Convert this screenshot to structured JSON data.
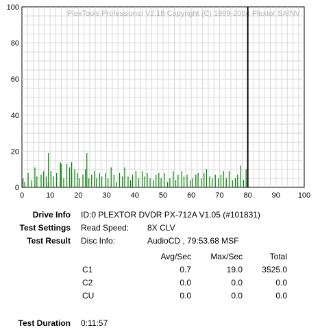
{
  "chart_data": {
    "type": "bar",
    "watermark": "PlexTools Professional V2.18 Copyright (C) 1999-2004 Plextor SA/NV",
    "xlim": [
      0,
      100
    ],
    "ylim": [
      0,
      100
    ],
    "x_ticks": [
      "0",
      "10",
      "20",
      "30",
      "40",
      "50",
      "60",
      "70",
      "80",
      "90",
      "100"
    ],
    "y_ticks": [
      "0",
      "20",
      "40",
      "60",
      "80",
      "100"
    ],
    "grid": true,
    "series": [
      {
        "color": "#008000",
        "x": [
          0.4,
          1.0,
          2.2,
          3.5,
          4.6,
          5.3,
          6.8,
          7.7,
          8.6,
          9.3,
          10.3,
          11.2,
          12.3,
          13.6,
          14.8,
          15.9,
          16.9,
          17.6,
          18.7,
          19.6,
          20.3,
          21.6,
          22.5,
          23.7,
          24.7,
          25.7,
          26.4,
          27.5,
          28.3,
          29.6,
          30.5,
          31.6,
          32.6,
          33.4,
          34.6,
          35.6,
          36.4,
          37.6,
          38.5,
          39.2,
          40.4,
          41.4,
          42.6,
          43.5,
          44.4,
          45.4,
          46.5,
          47.5,
          48.5,
          49.3,
          50.4,
          51.6,
          52.4,
          53.6,
          54.5,
          55.3,
          56.6,
          57.4,
          58.5,
          59.6,
          60.4,
          61.6,
          62.4,
          63.5,
          64.5,
          65.4,
          66.5,
          67.4,
          68.5,
          69.6,
          70.5,
          71.4,
          72.4,
          73.4,
          74.6,
          75.6,
          76.4,
          77.5,
          78.5,
          79.4
        ],
        "values": [
          5,
          3,
          8,
          4,
          11,
          6,
          7,
          9,
          6,
          3,
          9,
          6,
          8,
          14,
          5,
          13,
          11,
          5,
          10,
          8,
          5,
          7,
          10,
          5,
          7,
          9,
          5,
          8,
          6,
          8,
          5,
          11,
          7,
          3,
          8,
          6,
          11,
          6,
          4,
          7,
          9,
          5,
          9,
          6,
          8,
          5,
          4,
          7,
          8,
          5,
          8,
          3,
          5,
          9,
          4,
          7,
          9,
          6,
          7,
          4,
          5,
          7,
          8,
          5,
          8,
          10,
          6,
          5,
          7,
          5,
          7,
          9,
          5,
          9,
          4,
          5,
          7,
          12,
          4,
          10
        ]
      }
    ],
    "spikes": [
      {
        "x": 9.4,
        "value": 19
      },
      {
        "x": 23.0,
        "value": 19
      },
      {
        "x": 17.6,
        "value": 14
      },
      {
        "x": 13.9,
        "value": 13
      }
    ],
    "marker_x": 80
  },
  "info": {
    "drive_label": "Drive Info",
    "drive_value": "ID:0 PLEXTOR DVDR PX-712A V1.05 (#101831)",
    "settings_label": "Test Settings",
    "read_speed_label": "Read Speed:",
    "read_speed_value": "8X CLV",
    "result_label": "Test Result",
    "disc_label": "Disc Info:",
    "disc_value": "AudioCD , 79:53.68 MSF",
    "headers": [
      "Avg/Sec",
      "Max/Sec",
      "Total"
    ],
    "rows": [
      {
        "name": "C1",
        "avg": "0.7",
        "max": "19.0",
        "total": "3525.0"
      },
      {
        "name": "C2",
        "avg": "0.0",
        "max": "0.0",
        "total": "0.0"
      },
      {
        "name": "CU",
        "avg": "0.0",
        "max": "0.0",
        "total": "0.0"
      }
    ],
    "duration_label": "Test Duration",
    "duration_value": "0:11:57"
  }
}
